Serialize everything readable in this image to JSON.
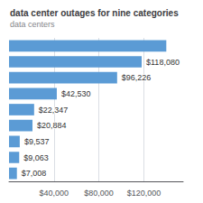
{
  "chart_data": {
    "type": "bar",
    "orientation": "horizontal",
    "title": "data center outages for nine categories",
    "subtitle": "data centers",
    "categories": [
      null,
      null,
      null,
      null,
      null,
      null,
      null,
      null,
      null
    ],
    "values": [
      140000,
      118080,
      96226,
      42530,
      22347,
      20884,
      9537,
      9063,
      7008
    ],
    "value_labels": [
      null,
      "$118,080",
      "$96,226",
      "$42,530",
      "$22,347",
      "$20,884",
      "$9,537",
      "$9,063",
      "$7,008"
    ],
    "data_labels": true,
    "color": "#5B9BD5",
    "xlim": [
      0,
      155000
    ],
    "xticks": [
      {
        "value": 40000,
        "label": "$40,000"
      },
      {
        "value": 80000,
        "label": "$80,000"
      },
      {
        "value": 120000,
        "label": "$120,000"
      }
    ],
    "grid": true,
    "tick_labels": "x"
  }
}
